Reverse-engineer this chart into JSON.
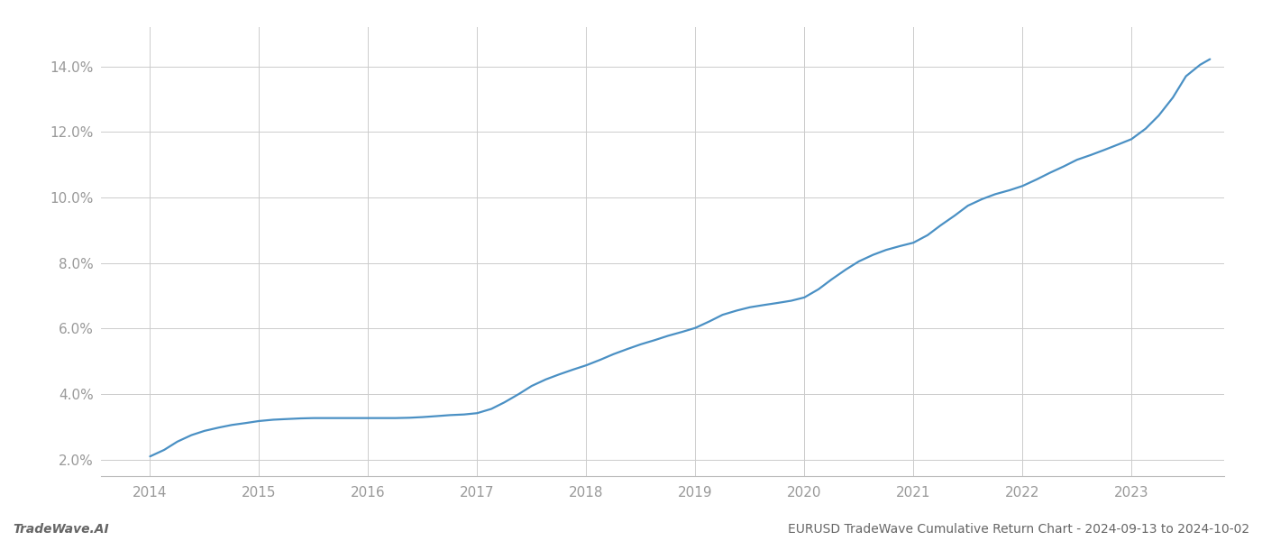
{
  "title": "EURUSD TradeWave Cumulative Return Chart - 2024-09-13 to 2024-10-02",
  "left_label": "TradeWave.AI",
  "x_years": [
    2014,
    2015,
    2016,
    2017,
    2018,
    2019,
    2020,
    2021,
    2022,
    2023
  ],
  "x_values": [
    2014.0,
    2014.13,
    2014.25,
    2014.38,
    2014.5,
    2014.63,
    2014.75,
    2014.88,
    2015.0,
    2015.13,
    2015.25,
    2015.38,
    2015.5,
    2015.63,
    2015.75,
    2015.88,
    2016.0,
    2016.13,
    2016.25,
    2016.38,
    2016.5,
    2016.63,
    2016.75,
    2016.88,
    2017.0,
    2017.13,
    2017.25,
    2017.38,
    2017.5,
    2017.63,
    2017.75,
    2017.88,
    2018.0,
    2018.13,
    2018.25,
    2018.38,
    2018.5,
    2018.63,
    2018.75,
    2018.88,
    2019.0,
    2019.13,
    2019.25,
    2019.38,
    2019.5,
    2019.63,
    2019.75,
    2019.88,
    2020.0,
    2020.13,
    2020.25,
    2020.38,
    2020.5,
    2020.63,
    2020.75,
    2020.88,
    2021.0,
    2021.13,
    2021.25,
    2021.38,
    2021.5,
    2021.63,
    2021.75,
    2021.88,
    2022.0,
    2022.13,
    2022.25,
    2022.38,
    2022.5,
    2022.63,
    2022.75,
    2022.88,
    2023.0,
    2023.13,
    2023.25,
    2023.38,
    2023.5,
    2023.63,
    2023.72
  ],
  "y_values": [
    2.1,
    2.3,
    2.55,
    2.75,
    2.88,
    2.98,
    3.06,
    3.12,
    3.18,
    3.22,
    3.24,
    3.26,
    3.27,
    3.27,
    3.27,
    3.27,
    3.27,
    3.27,
    3.27,
    3.28,
    3.3,
    3.33,
    3.36,
    3.38,
    3.42,
    3.55,
    3.75,
    4.0,
    4.25,
    4.45,
    4.6,
    4.75,
    4.88,
    5.05,
    5.22,
    5.38,
    5.52,
    5.65,
    5.78,
    5.9,
    6.02,
    6.22,
    6.42,
    6.55,
    6.65,
    6.72,
    6.78,
    6.85,
    6.95,
    7.2,
    7.5,
    7.8,
    8.05,
    8.25,
    8.4,
    8.52,
    8.62,
    8.85,
    9.15,
    9.45,
    9.75,
    9.95,
    10.1,
    10.22,
    10.35,
    10.55,
    10.75,
    10.95,
    11.15,
    11.3,
    11.45,
    11.62,
    11.78,
    12.1,
    12.5,
    13.05,
    13.7,
    14.05,
    14.22
  ],
  "line_color": "#4a90c4",
  "background_color": "#ffffff",
  "grid_color": "#cccccc",
  "tick_color": "#999999",
  "text_color": "#666666",
  "ylim": [
    1.5,
    15.2
  ],
  "yticks": [
    2.0,
    4.0,
    6.0,
    8.0,
    10.0,
    12.0,
    14.0
  ],
  "xlim": [
    2013.55,
    2023.85
  ],
  "line_width": 1.6,
  "figsize": [
    14.0,
    6.0
  ],
  "dpi": 100
}
